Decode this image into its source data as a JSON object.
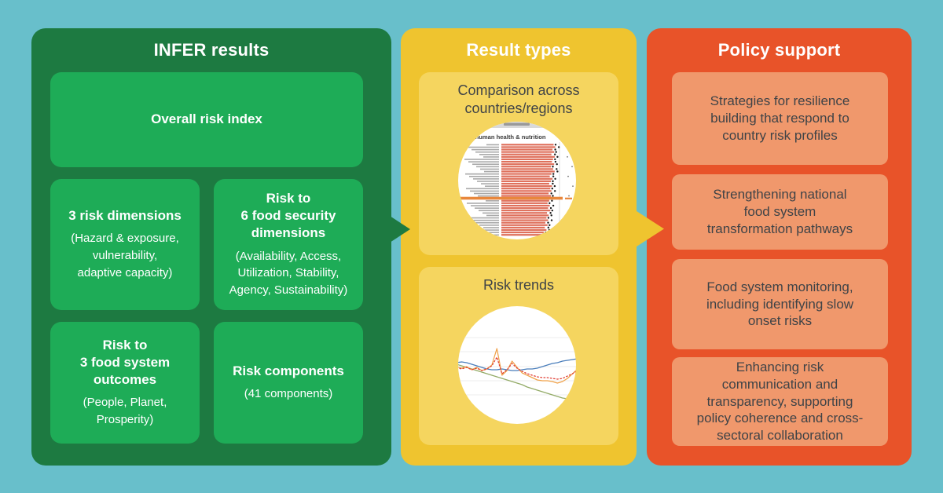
{
  "canvas_bg": "#68bfcb",
  "columns": [
    {
      "title": "INFER results",
      "panel_color": "#1d7a41",
      "box_color": "#1eac57",
      "text_color": "#ffffff",
      "boxes": [
        {
          "title": "Overall risk index",
          "subtitle": ""
        },
        {
          "title": "3 risk dimensions",
          "subtitle": "(Hazard & exposure,\nvulnerability,\nadaptive capacity)"
        },
        {
          "title": "Risk to\n6 food security\ndimensions",
          "subtitle": "(Availability, Access,\nUtilization, Stability,\nAgency, Sustainability)"
        },
        {
          "title": "Risk to\n3 food system\noutcomes",
          "subtitle": "(People, Planet,\nProsperity)"
        },
        {
          "title": "Risk components",
          "subtitle": "(41 components)"
        }
      ]
    },
    {
      "title": "Result types",
      "panel_color": "#efc42f",
      "box_color": "#f5d55f",
      "text_color": "#3f4347",
      "boxes": [
        {
          "label": "Comparison across\ncountries/regions"
        },
        {
          "label": "Risk trends"
        }
      ]
    },
    {
      "title": "Policy support",
      "panel_color": "#e85329",
      "box_color": "#f0986c",
      "text_color": "#3f4347",
      "boxes": [
        {
          "text": "Strategies for resilience\nbuilding that respond to\ncountry risk profiles"
        },
        {
          "text": "Strengthening national\nfood system\ntransformation pathways"
        },
        {
          "text": "Food system monitoring,\nincluding identifying slow\nonset risks"
        },
        {
          "text": "Enhancing risk\ncommunication and\ntransparency, supporting\npolicy coherence and cross-\nsectoral collaboration"
        }
      ]
    }
  ],
  "arrows": [
    {
      "name": "infer-to-results",
      "color": "#1d7a41"
    },
    {
      "name": "results-to-policy",
      "color": "#efc42f"
    }
  ],
  "charts": {
    "country_comparison": {
      "type": "bar-ranking",
      "title": "Risks to human health & nutrition",
      "bar_color": "#df705c",
      "dot_color": "#1a1a1a",
      "label_color": "#9a9a9a",
      "highlight_color": "#e8873c",
      "highlight_index": 22,
      "bars": [
        0.95,
        0.98,
        0.93,
        0.96,
        0.91,
        0.97,
        0.94,
        0.92,
        0.96,
        0.9,
        0.94,
        0.97,
        0.91,
        0.88,
        0.93,
        0.9,
        0.87,
        0.92,
        0.89,
        0.91,
        0.86,
        0.9,
        0.93,
        0.87,
        0.84,
        0.88,
        0.85,
        0.89,
        0.83,
        0.86,
        0.82,
        0.85,
        0.8,
        0.84,
        0.79,
        0.82,
        0.77,
        0.8
      ]
    },
    "risk_trends": {
      "type": "line",
      "gridlines": [
        40,
        58,
        77,
        95,
        113
      ],
      "series": [
        {
          "name": "overall",
          "color": "#4a7ebb",
          "style": "solid",
          "values": [
            58,
            59,
            58,
            56,
            54,
            52,
            50,
            49,
            49,
            50,
            49,
            48,
            48,
            49,
            50,
            50,
            51,
            53,
            55,
            57,
            58,
            60,
            61,
            62,
            63
          ]
        },
        {
          "name": "declining-component",
          "color": "#93ab67",
          "style": "solid",
          "values": [
            56,
            54,
            52,
            50,
            48,
            46,
            44,
            42,
            40,
            38,
            36,
            34,
            32,
            30,
            27,
            25,
            23,
            21,
            19,
            17,
            15,
            13,
            12,
            14,
            15
          ]
        },
        {
          "name": "spiking-component",
          "color": "#f0a24a",
          "style": "solid",
          "values": [
            53,
            51,
            53,
            49,
            52,
            48,
            50,
            55,
            76,
            42,
            48,
            60,
            52,
            45,
            42,
            39,
            36,
            35,
            35,
            34,
            32,
            34,
            38,
            44,
            50
          ]
        },
        {
          "name": "dotted-component",
          "color": "#e03c31",
          "style": "dotted",
          "values": [
            52,
            50,
            52,
            49,
            51,
            48,
            50,
            54,
            65,
            44,
            49,
            57,
            51,
            47,
            44,
            42,
            40,
            39,
            39,
            38,
            37,
            38,
            41,
            44,
            48
          ]
        }
      ]
    }
  }
}
